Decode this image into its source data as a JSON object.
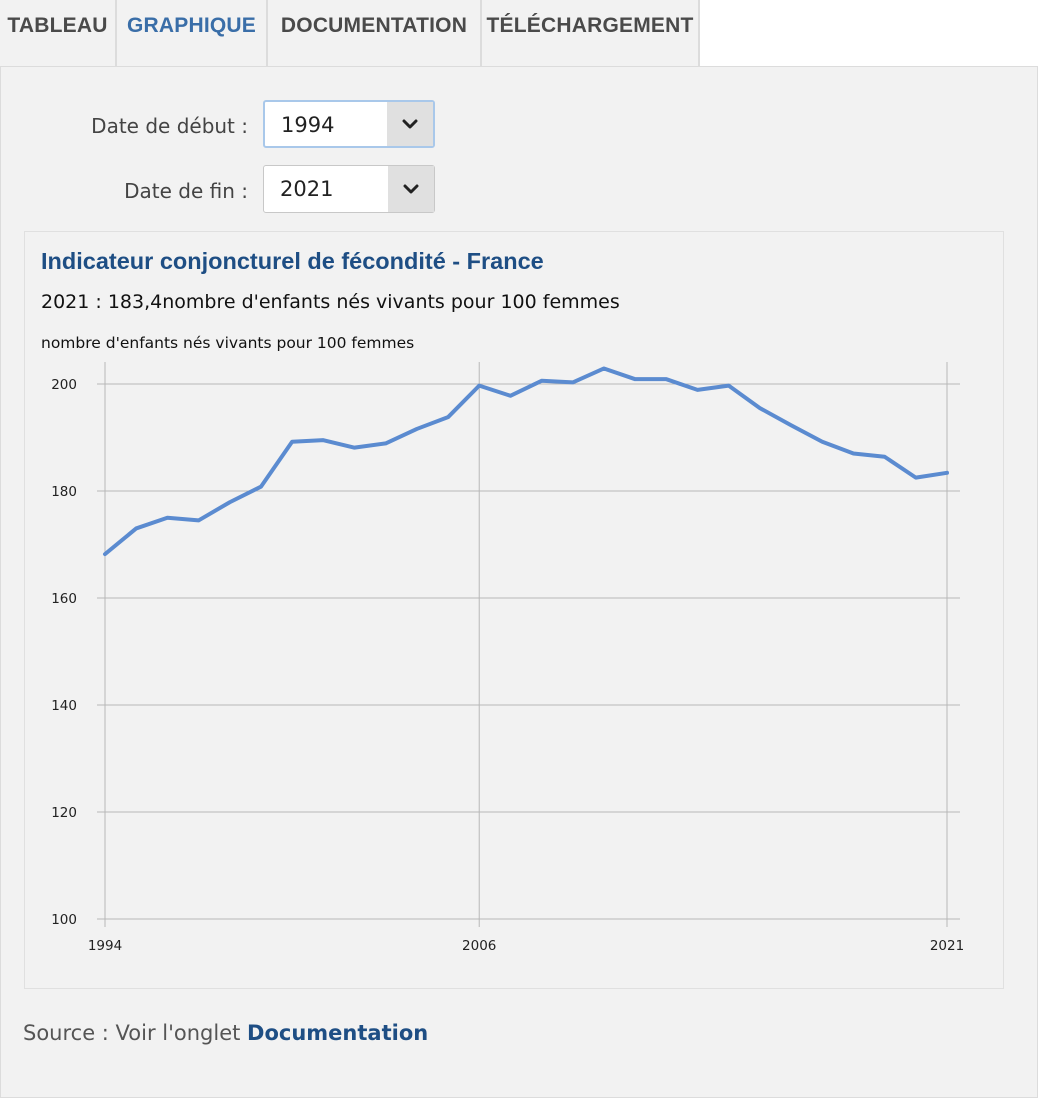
{
  "tabs": [
    {
      "label": "TABLEAU",
      "active": false
    },
    {
      "label": "GRAPHIQUE",
      "active": true
    },
    {
      "label": "DOCUMENTATION",
      "active": false
    },
    {
      "label": "TÉLÉCHARGEMENT",
      "active": false
    }
  ],
  "filters": {
    "start_label": "Date de début :",
    "start_value": "1994",
    "end_label": "Date de fin :",
    "end_value": "2021",
    "dropdown_icon": "chevron-down-icon"
  },
  "source": {
    "prefix": "Source : Voir l'onglet ",
    "link": "Documentation"
  },
  "colors": {
    "line": "#5b8bd0",
    "title": "#1e4e84",
    "active_tab": "#3a6ea8"
  },
  "chart_data": {
    "type": "line",
    "title": "Indicateur conjoncturel de fécondité - France",
    "subtitle": "2021 : 183,4nombre d'enfants nés vivants pour 100 femmes",
    "ylabel": "nombre d'enfants nés vivants pour 100 femmes",
    "xlabel": "",
    "x": [
      1994,
      1995,
      1996,
      1997,
      1998,
      1999,
      2000,
      2001,
      2002,
      2003,
      2004,
      2005,
      2006,
      2007,
      2008,
      2009,
      2010,
      2011,
      2012,
      2013,
      2014,
      2015,
      2016,
      2017,
      2018,
      2019,
      2020,
      2021
    ],
    "series": [
      {
        "values": [
          168.2,
          173.0,
          175.0,
          174.5,
          177.9,
          180.8,
          189.2,
          189.5,
          188.1,
          188.9,
          191.6,
          193.8,
          199.7,
          197.8,
          200.6,
          200.3,
          202.9,
          200.9,
          200.9,
          198.9,
          199.7,
          195.5,
          192.3,
          189.2,
          187.0,
          186.4,
          182.5,
          183.4
        ]
      }
    ],
    "xticks": [
      "1994",
      "2006",
      "2021"
    ],
    "yticks": [
      100,
      120,
      140,
      160,
      180,
      200
    ],
    "ylim": [
      100,
      204
    ],
    "xlim": [
      1994,
      2021.4
    ],
    "grid": true,
    "legend": "none"
  }
}
